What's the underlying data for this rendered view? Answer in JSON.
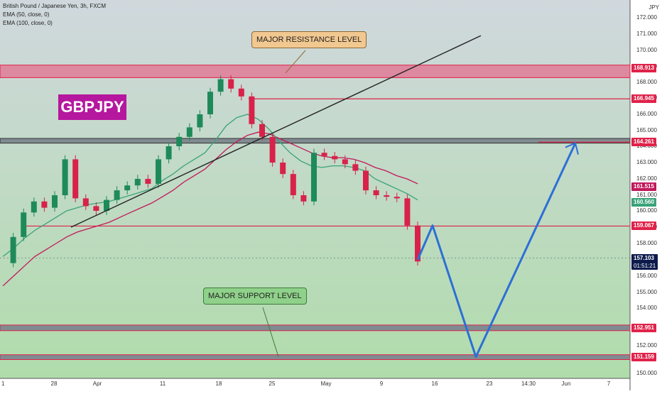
{
  "header": {
    "symbol_line": "British Pound / Japanese Yen, 3h, FXCM",
    "indicators": [
      "EMA (50, close, 0)",
      "EMA (100, close, 0)"
    ],
    "currency_unit": "JPY"
  },
  "badge": "GBPJPY",
  "annotations": {
    "resistance": "MAJOR RESISTANCE LEVEL",
    "support": "MAJOR SUPPORT LEVEL"
  },
  "colors": {
    "background_top": "#d0d8dd",
    "background_bottom": "#b0dcab",
    "candle_up": "#1e8a5a",
    "candle_down": "#d8224a",
    "ema50": "#3aa37a",
    "ema100": "#c2185b",
    "level_line": "#e0224a",
    "projection": "#2c6fd6",
    "trendline": "#222222",
    "badge": "#b5179e",
    "callout_resistance": "#f2c891",
    "callout_support": "#8fd18a"
  },
  "chart_data": {
    "type": "line",
    "title": "British Pound / Japanese Yen, 3h, FXCM",
    "y_unit": "JPY",
    "ylim": [
      149.7,
      172.6
    ],
    "y_ticks": [
      150.0,
      152.0,
      154.0,
      155.0,
      156.0,
      157.0,
      158.0,
      159.0,
      160.0,
      161.0,
      162.0,
      163.0,
      164.0,
      165.0,
      166.0,
      167.0,
      168.0,
      169.0,
      170.0,
      171.0,
      172.0
    ],
    "x_ticks": [
      "1",
      "28",
      "Apr",
      "11",
      "18",
      "25",
      "May",
      "9",
      "16",
      "23",
      "14:30",
      "Jun",
      "7"
    ],
    "grid": false,
    "price_series": {
      "name": "GBPJPY 3h",
      "points": [
        [
          "1",
          156.8
        ],
        [
          "",
          158.4
        ],
        [
          "",
          159.9
        ],
        [
          "",
          160.6
        ],
        [
          "",
          160.2
        ],
        [
          "28",
          161.0
        ],
        [
          "",
          163.2
        ],
        [
          "",
          160.8
        ],
        [
          "",
          160.3
        ],
        [
          "",
          160.0
        ],
        [
          "Apr",
          160.7
        ],
        [
          "",
          161.3
        ],
        [
          "",
          161.6
        ],
        [
          "",
          162.0
        ],
        [
          "",
          161.7
        ],
        [
          "11",
          163.2
        ],
        [
          "",
          164.0
        ],
        [
          "",
          164.6
        ],
        [
          "",
          165.2
        ],
        [
          "",
          166.0
        ],
        [
          "18",
          167.4
        ],
        [
          "",
          168.2
        ],
        [
          "",
          167.6
        ],
        [
          "",
          167.1
        ],
        [
          "",
          165.4
        ],
        [
          "25",
          164.6
        ],
        [
          "",
          163.0
        ],
        [
          "",
          162.3
        ],
        [
          "",
          161.0
        ],
        [
          "",
          160.6
        ],
        [
          "May",
          163.6
        ],
        [
          "",
          163.4
        ],
        [
          "",
          163.2
        ],
        [
          "",
          162.9
        ],
        [
          "",
          162.5
        ],
        [
          "9",
          161.3
        ],
        [
          "",
          161.0
        ],
        [
          "",
          160.9
        ],
        [
          "",
          160.8
        ],
        [
          "",
          159.1
        ],
        [
          "",
          156.9
        ]
      ]
    },
    "ema_50": [
      157.2,
      157.7,
      158.3,
      158.8,
      159.2,
      159.6,
      160.0,
      160.2,
      160.4,
      160.5,
      160.6,
      160.8,
      161.0,
      161.2,
      161.4,
      161.9,
      162.3,
      162.8,
      163.2,
      163.6,
      164.4,
      165.3,
      165.8,
      166.0,
      165.7,
      165.1,
      164.3,
      163.6,
      163.1,
      162.8,
      162.7,
      162.8,
      162.8,
      162.7,
      162.5,
      162.0,
      161.7,
      161.4,
      161.1,
      160.7
    ],
    "ema_100": [
      155.4,
      156.0,
      156.6,
      157.2,
      157.6,
      158.0,
      158.4,
      158.7,
      158.9,
      159.1,
      159.3,
      159.6,
      159.9,
      160.2,
      160.5,
      160.9,
      161.3,
      161.8,
      162.2,
      162.6,
      163.2,
      163.8,
      164.3,
      164.7,
      164.9,
      164.8,
      164.5,
      164.2,
      163.9,
      163.6,
      163.4,
      163.3,
      163.3,
      163.2,
      163.0,
      162.7,
      162.5,
      162.2,
      162.0,
      161.7
    ],
    "levels": [
      {
        "label": "168.913",
        "value": 168.913,
        "kind": "resistance zone"
      },
      {
        "label": "166.945",
        "value": 166.945,
        "kind": "line"
      },
      {
        "label": "164.261",
        "value": 164.261,
        "kind": "zone"
      },
      {
        "label": "159.067",
        "value": 159.067,
        "kind": "line"
      },
      {
        "label": "152.951",
        "value": 152.951,
        "kind": "support zone"
      },
      {
        "label": "151.159",
        "value": 151.159,
        "kind": "support zone"
      }
    ],
    "current": {
      "price": "157.103",
      "countdown": "01:51:21",
      "value": 157.103
    },
    "ema_labels": [
      {
        "label": "161.515",
        "value": 161.515,
        "series": "EMA (100, close, 0)"
      },
      {
        "label": "160.560",
        "value": 160.56,
        "series": "EMA (50, close, 0)"
      }
    ],
    "projection_path": [
      157.0,
      159.1,
      151.2,
      164.2
    ]
  }
}
